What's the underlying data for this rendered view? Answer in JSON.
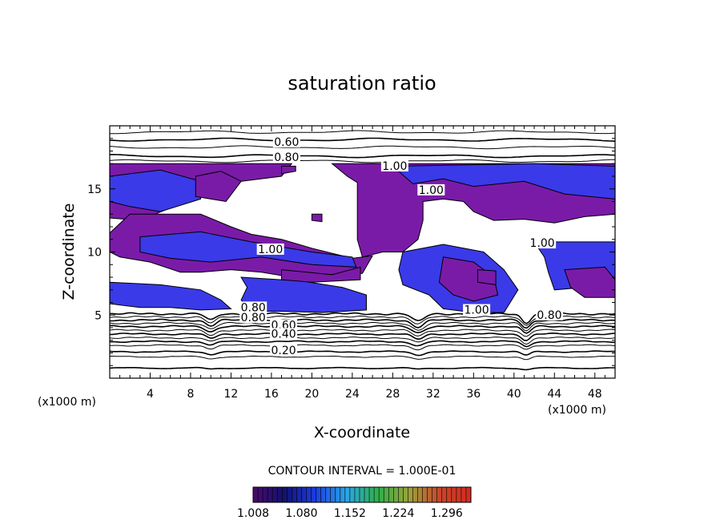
{
  "chart_data": {
    "type": "heatmap",
    "title": "saturation ratio",
    "xlabel": "X-coordinate",
    "ylabel": "Z-coordinate",
    "x_unit_left": "(x1000 m)",
    "x_unit_right": "(x1000 m)",
    "xlim": [
      0,
      50
    ],
    "ylim": [
      0,
      20
    ],
    "xticks": [
      4,
      8,
      12,
      16,
      20,
      24,
      28,
      32,
      36,
      40,
      44,
      48
    ],
    "yticks": [
      5,
      10,
      15
    ],
    "contour_interval_text": "CONTOUR INTERVAL = 1.000E-01",
    "contour_labels": [
      {
        "text": "0.60",
        "x": 17.5,
        "z": 18.6
      },
      {
        "text": "0.80",
        "x": 17.5,
        "z": 17.4
      },
      {
        "text": "1.00",
        "x": 28.2,
        "z": 16.7
      },
      {
        "text": "1.00",
        "x": 31.8,
        "z": 14.8
      },
      {
        "text": "1.00",
        "x": 42.8,
        "z": 10.6
      },
      {
        "text": "1.00",
        "x": 15.9,
        "z": 10.1
      },
      {
        "text": "1.00",
        "x": 36.3,
        "z": 5.3
      },
      {
        "text": "0.80",
        "x": 43.5,
        "z": 4.9
      },
      {
        "text": "0.80",
        "x": 14.2,
        "z": 5.5
      },
      {
        "text": "0.80",
        "x": 14.2,
        "z": 4.7
      },
      {
        "text": "0.60",
        "x": 17.2,
        "z": 4.1
      },
      {
        "text": "0.40",
        "x": 17.2,
        "z": 3.4
      },
      {
        "text": "0.20",
        "x": 17.2,
        "z": 2.1
      }
    ],
    "colorbar": {
      "min": 1.008,
      "max": 1.332,
      "tick_labels": [
        "1.008",
        "1.080",
        "1.152",
        "1.224",
        "1.296"
      ],
      "colors": [
        "#4a0a6b",
        "#12126e",
        "#1c3de0",
        "#2aa6e6",
        "#2fb04a",
        "#9aa338",
        "#c8462c",
        "#d42a1e"
      ]
    },
    "region_color": "#7a1ba8",
    "region_color_2": "#3a3ae8",
    "line_color": "#000000"
  }
}
